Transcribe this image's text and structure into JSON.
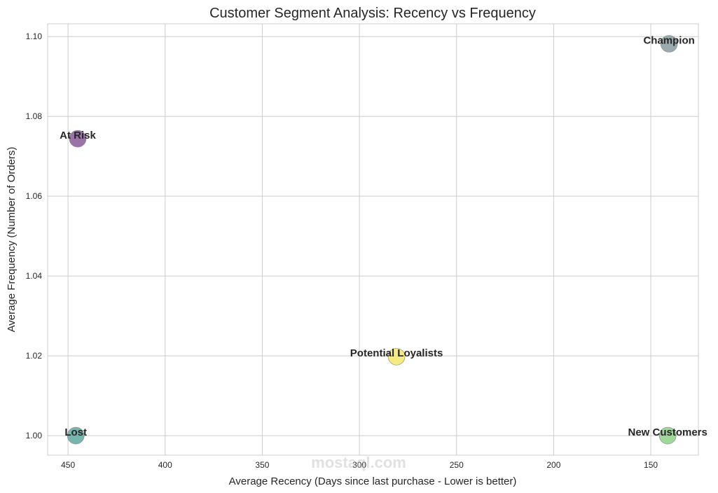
{
  "chart_data": {
    "type": "scatter",
    "title": "Customer Segment Analysis: Recency vs Frequency",
    "xlabel": "Average Recency (Days since last purchase - Lower is better)",
    "ylabel": "Average Frequency (Number of Orders)",
    "xlim": [
      460.5,
      125.5
    ],
    "ylim": [
      0.9951,
      1.1032
    ],
    "x_inverted": true,
    "grid": true,
    "xticks": [
      450,
      400,
      350,
      300,
      250,
      200,
      150
    ],
    "yticks": [
      1.0,
      1.02,
      1.04,
      1.06,
      1.08,
      1.1
    ],
    "points": [
      {
        "label": "Champion",
        "x": 140.6,
        "y": 1.0982,
        "color": "#8a9ba0"
      },
      {
        "label": "At Risk",
        "x": 445.0,
        "y": 1.0744,
        "color": "#8a5a9a"
      },
      {
        "label": "Potential Loyalists",
        "x": 280.9,
        "y": 1.0198,
        "color": "#f3e76a"
      },
      {
        "label": "Lost",
        "x": 446.0,
        "y": 1.0,
        "color": "#5fa8a0"
      },
      {
        "label": "New Customers",
        "x": 141.3,
        "y": 1.0,
        "color": "#8fd08a"
      }
    ]
  },
  "watermark": "mostaql.com"
}
